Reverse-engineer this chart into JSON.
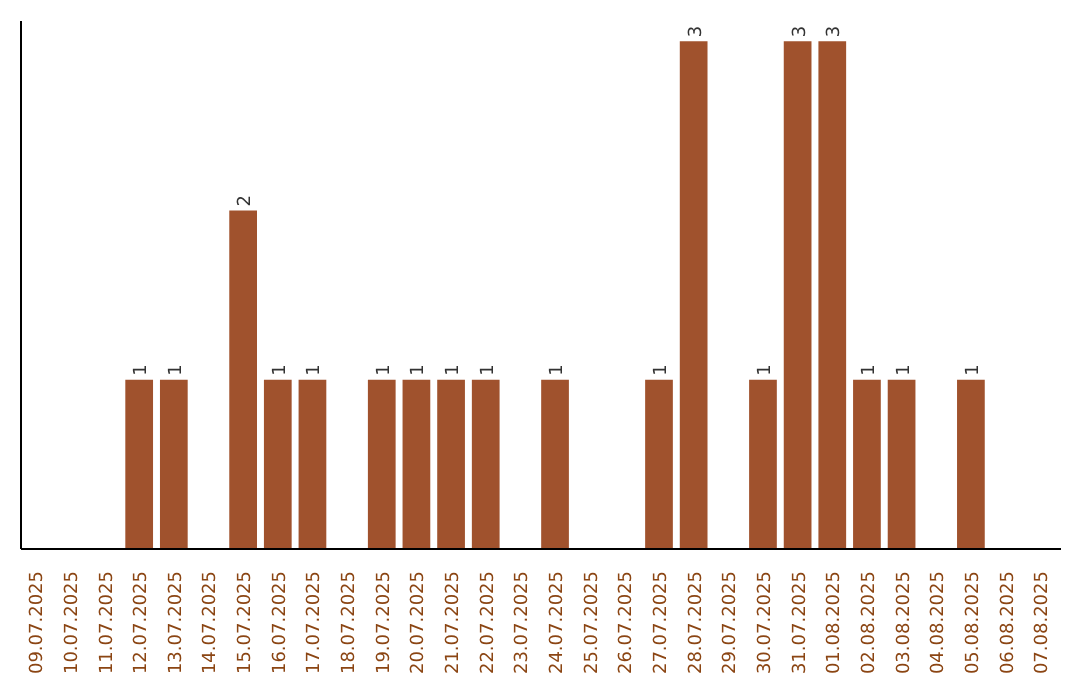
{
  "chart_data": {
    "type": "bar",
    "categories": [
      "09.07.2025",
      "10.07.2025",
      "11.07.2025",
      "12.07.2025",
      "13.07.2025",
      "14.07.2025",
      "15.07.2025",
      "16.07.2025",
      "17.07.2025",
      "18.07.2025",
      "19.07.2025",
      "20.07.2025",
      "21.07.2025",
      "22.07.2025",
      "23.07.2025",
      "24.07.2025",
      "25.07.2025",
      "26.07.2025",
      "27.07.2025",
      "28.07.2025",
      "29.07.2025",
      "30.07.2025",
      "31.07.2025",
      "01.08.2025",
      "02.08.2025",
      "03.08.2025",
      "04.08.2025",
      "05.08.2025",
      "06.08.2025",
      "07.08.2025"
    ],
    "values": [
      0,
      0,
      0,
      1,
      1,
      0,
      2,
      1,
      1,
      0,
      1,
      1,
      1,
      1,
      0,
      1,
      0,
      0,
      1,
      3,
      0,
      1,
      3,
      3,
      1,
      1,
      0,
      1,
      0,
      0
    ],
    "value_labels": [
      null,
      null,
      null,
      "1",
      "1",
      null,
      "2",
      "1",
      "1",
      null,
      "1",
      "1",
      "1",
      "1",
      null,
      "1",
      null,
      null,
      "1",
      "3",
      null,
      "1",
      "3",
      "3",
      "1",
      "1",
      null,
      "1",
      null,
      null
    ],
    "color": "#a0522d",
    "tick_labels": "x"
  }
}
